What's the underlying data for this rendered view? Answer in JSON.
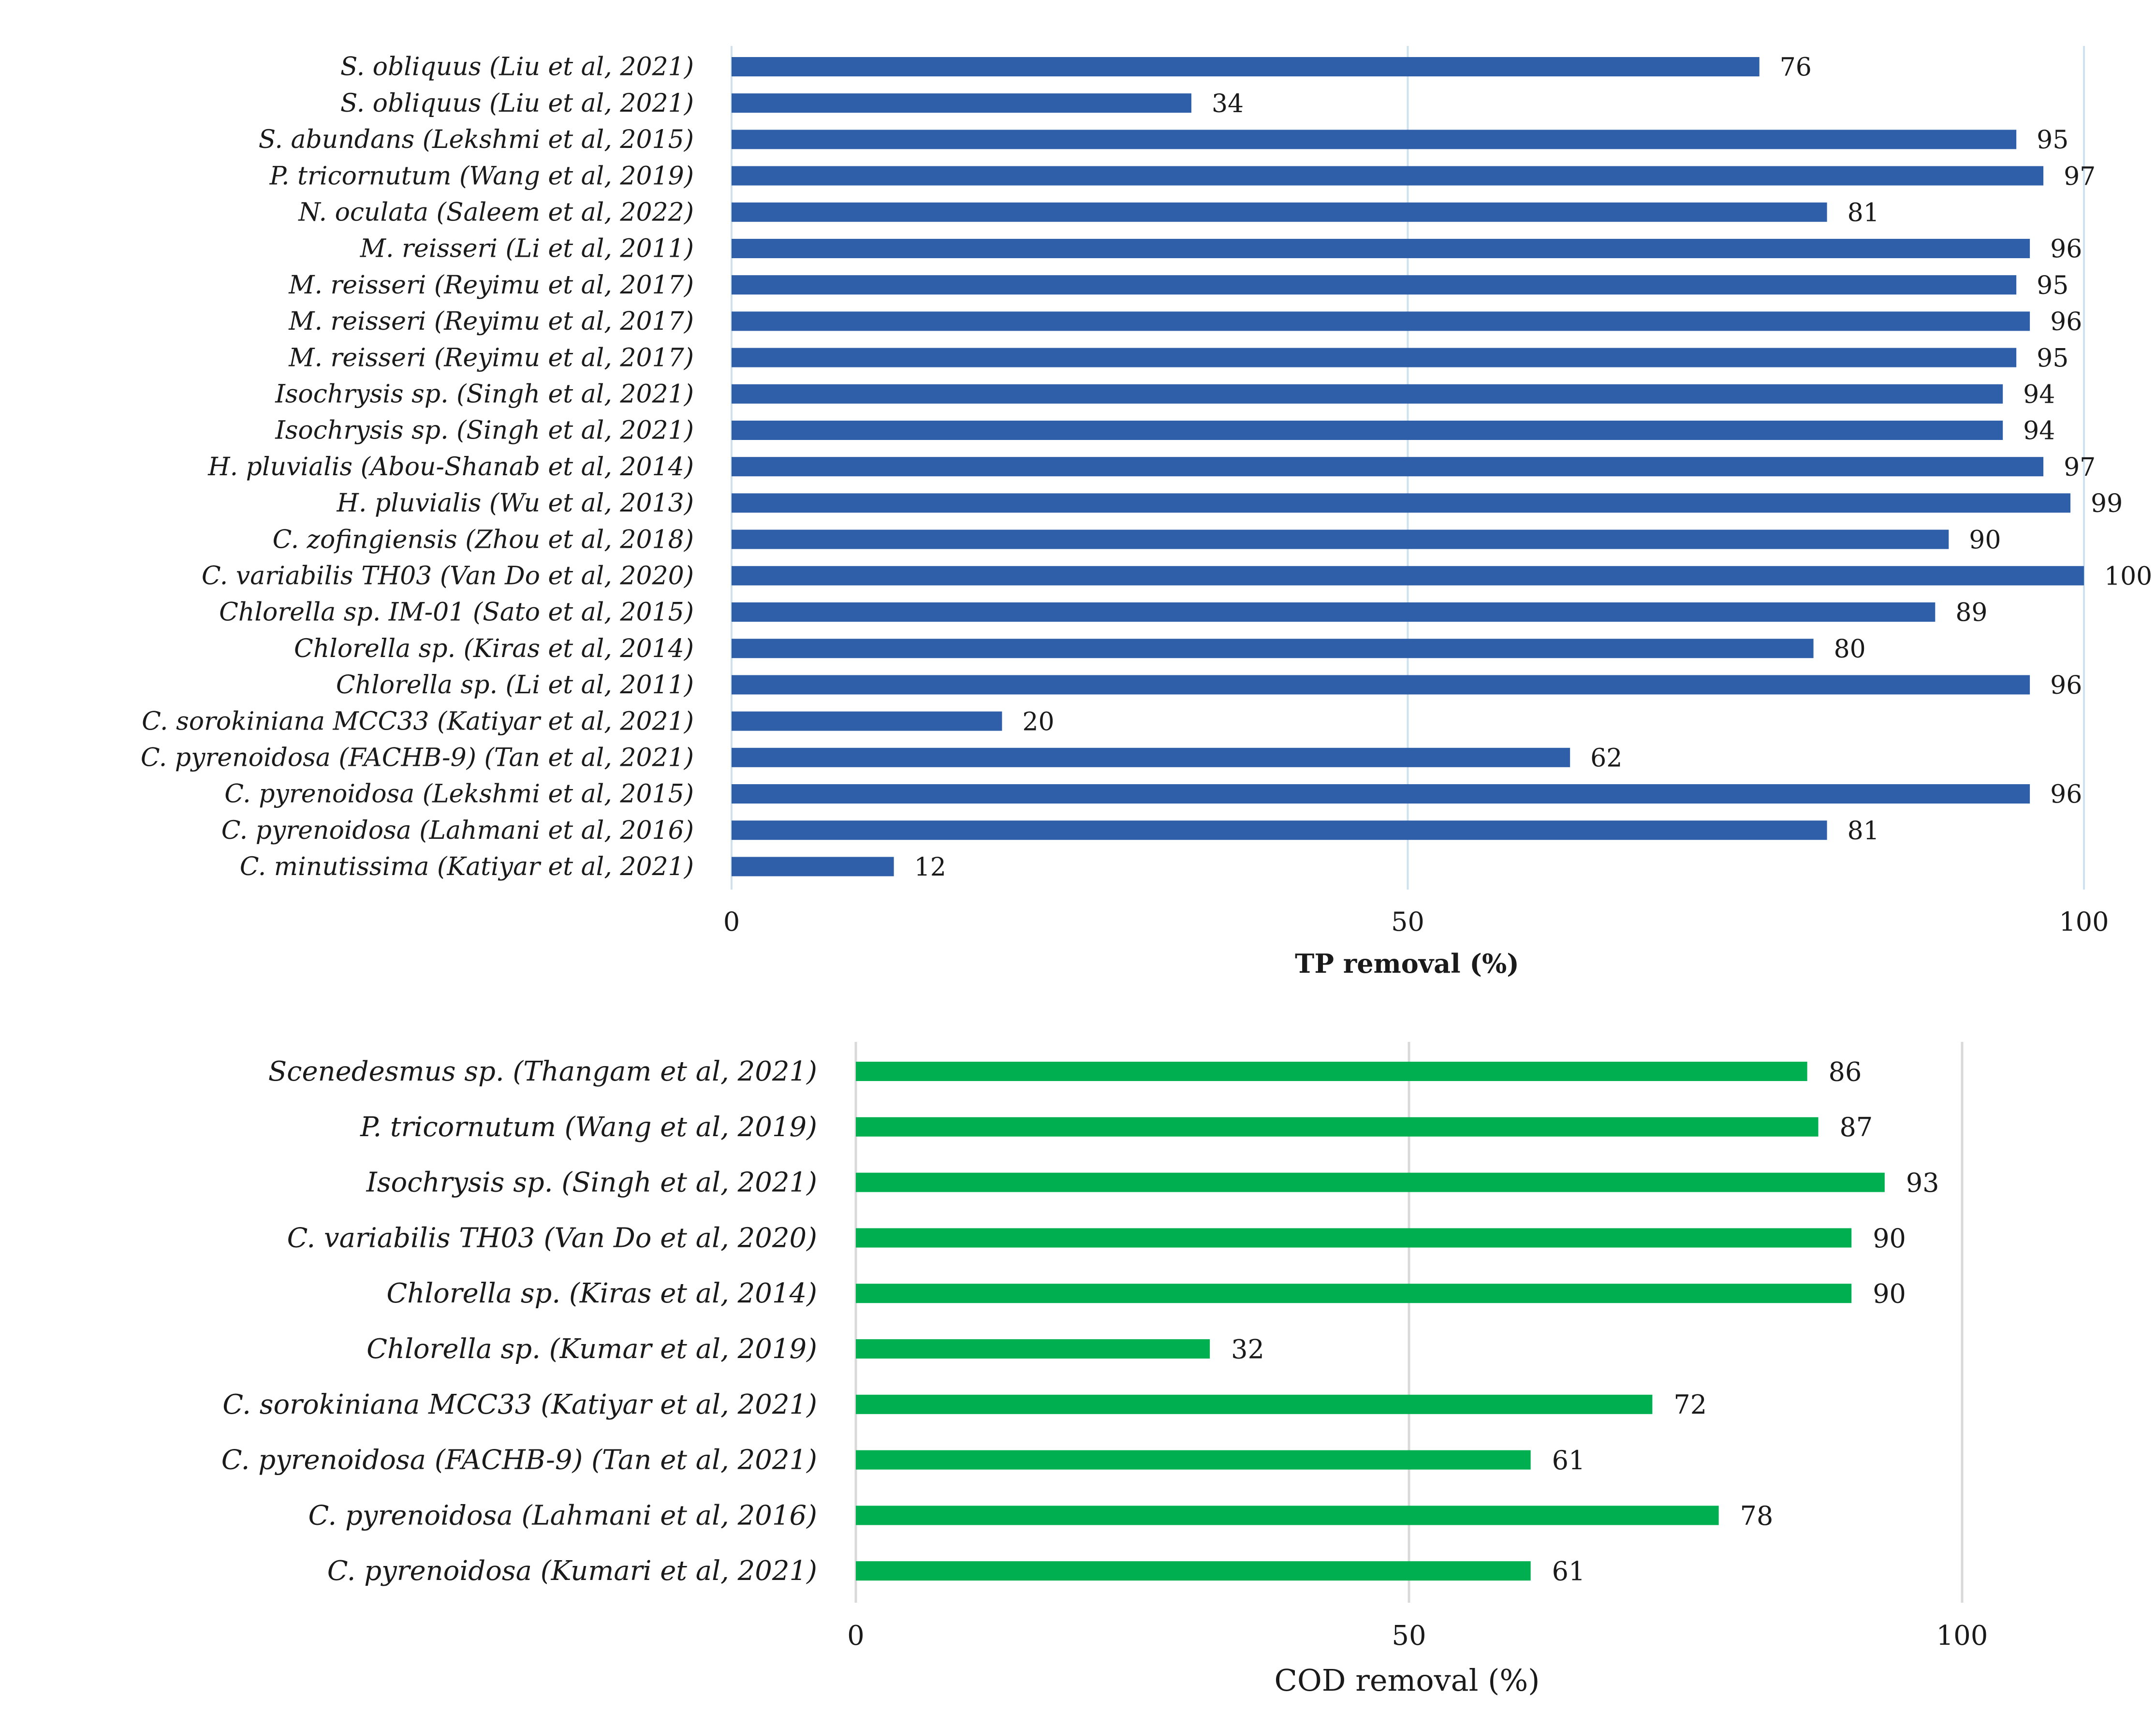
{
  "chart_data": [
    {
      "type": "bar",
      "orientation": "horizontal",
      "title": "",
      "xlabel": "TP removal (%)",
      "ylabel": "",
      "xlim": [
        0,
        100
      ],
      "ticks": [
        0,
        50,
        100
      ],
      "grid": true,
      "color": "#2E5FA8",
      "categories": [
        "S. obliquus (Liu et al, 2021)",
        "S. obliquus (Liu et al, 2021)",
        "S. abundans (Lekshmi et al, 2015)",
        "P. tricornutum (Wang et al, 2019)",
        "N. oculata (Saleem et al, 2022)",
        "M. reisseri (Li et al, 2011)",
        "M. reisseri (Reyimu et al, 2017)",
        "M. reisseri (Reyimu et al, 2017)",
        "M. reisseri (Reyimu et al, 2017)",
        "Isochrysis sp. (Singh et al, 2021)",
        "Isochrysis sp. (Singh et al, 2021)",
        "H. pluvialis (Abou-Shanab et al, 2014)",
        "H. pluvialis (Wu et al, 2013)",
        "C. zofingiensis (Zhou et al, 2018)",
        "C. variabilis TH03  (Van Do et al, 2020)",
        "Chlorella sp. IM-01 (Sato et al, 2015)",
        "Chlorella sp. (Kiras et al, 2014)",
        "Chlorella sp. (Li et al, 2011)",
        "C. sorokiniana MCC33 (Katiyar et al, 2021)",
        "C. pyrenoidosa (FACHB-9) (Tan et al, 2021)",
        "C. pyrenoidosa (Lekshmi et al, 2015)",
        "C. pyrenoidosa (Lahmani et al, 2016)",
        "C. minutissima (Katiyar et al, 2021)"
      ],
      "values": [
        76,
        34,
        95,
        97,
        81,
        96,
        95,
        96,
        95,
        94,
        94,
        97,
        99,
        90,
        100,
        89,
        80,
        96,
        20,
        62,
        96,
        81,
        12
      ],
      "value_labels": [
        "76",
        "34",
        "95",
        "97",
        "81",
        "96",
        "95",
        "96",
        "95",
        "94",
        "94",
        "97",
        "99",
        "90",
        "100",
        "89",
        "80",
        "96",
        "20",
        "62",
        "96",
        "81",
        "12"
      ]
    },
    {
      "type": "bar",
      "orientation": "horizontal",
      "title": "",
      "xlabel": "COD removal (%)",
      "ylabel": "",
      "xlim": [
        0,
        100
      ],
      "ticks": [
        0,
        50,
        100
      ],
      "grid": true,
      "color": "#00B050",
      "categories": [
        "Scenedesmus sp. (Thangam et al, 2021)",
        "P. tricornutum (Wang et al, 2019)",
        "Isochrysis sp. (Singh et al, 2021)",
        "C. variabilis TH03  (Van Do et al, 2020)",
        "Chlorella sp. (Kiras et al, 2014)",
        "Chlorella sp. (Kumar et al, 2019)",
        "C. sorokiniana MCC33 (Katiyar et al, 2021)",
        "C. pyrenoidosa (FACHB-9) (Tan et al, 2021)",
        "C. pyrenoidosa (Lahmani et al, 2016)",
        "C. pyrenoidosa (Kumari et al, 2021)"
      ],
      "values": [
        86,
        87,
        93,
        90,
        90,
        32,
        72,
        61,
        78,
        61
      ],
      "value_labels": [
        "86",
        "87",
        "93",
        "90",
        "90",
        "32",
        "72",
        "61",
        "78",
        "61"
      ]
    }
  ]
}
